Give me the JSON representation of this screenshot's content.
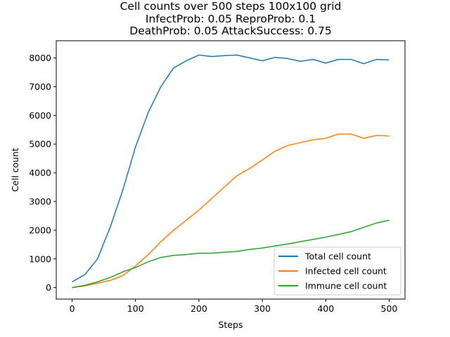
{
  "chart_data": {
    "type": "line",
    "title_lines": [
      "Cell counts over 500 steps 100x100 grid",
      "InfectProb: 0.05 ReproProb: 0.1",
      "DeathProb: 0.05 AttackSuccess: 0.75"
    ],
    "xlabel": "Steps",
    "ylabel": "Cell count",
    "xlim": [
      -25,
      525
    ],
    "ylim": [
      -400,
      8600
    ],
    "xticks": [
      0,
      100,
      200,
      300,
      400,
      500
    ],
    "yticks": [
      0,
      1000,
      2000,
      3000,
      4000,
      5000,
      6000,
      7000,
      8000
    ],
    "grid": false,
    "legend_position": "lower-right",
    "x": [
      0,
      20,
      40,
      60,
      80,
      100,
      120,
      140,
      160,
      180,
      200,
      220,
      240,
      260,
      280,
      300,
      320,
      340,
      360,
      380,
      400,
      420,
      440,
      460,
      480,
      500
    ],
    "series": [
      {
        "name": "Total cell count",
        "color": "#1f77b4",
        "values": [
          200,
          450,
          1000,
          2100,
          3400,
          4900,
          6100,
          7000,
          7650,
          7900,
          8100,
          8050,
          8080,
          8100,
          8000,
          7900,
          8020,
          7980,
          7880,
          7950,
          7820,
          7950,
          7950,
          7800,
          7950,
          7930
        ]
      },
      {
        "name": "Infected cell count",
        "color": "#ff7f0e",
        "values": [
          0,
          60,
          150,
          250,
          420,
          750,
          1150,
          1600,
          2000,
          2350,
          2700,
          3100,
          3500,
          3900,
          4150,
          4450,
          4750,
          4950,
          5050,
          5150,
          5200,
          5350,
          5350,
          5200,
          5300,
          5280
        ]
      },
      {
        "name": "Immune cell count",
        "color": "#2ca02c",
        "values": [
          0,
          80,
          200,
          350,
          550,
          700,
          900,
          1050,
          1120,
          1150,
          1200,
          1200,
          1230,
          1260,
          1330,
          1380,
          1450,
          1520,
          1600,
          1680,
          1760,
          1850,
          1950,
          2100,
          2250,
          2350
        ]
      }
    ]
  }
}
